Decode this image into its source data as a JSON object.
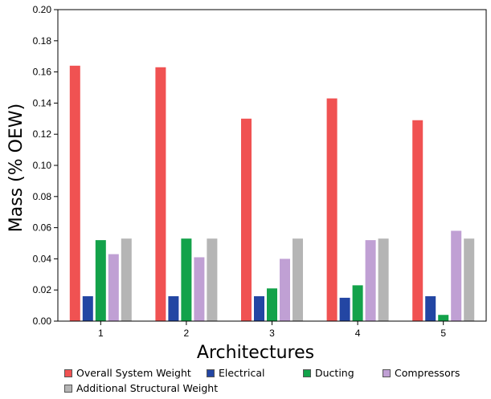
{
  "chart_data": {
    "type": "bar",
    "categories": [
      "1",
      "2",
      "3",
      "4",
      "5"
    ],
    "series": [
      {
        "name": "Overall System Weight",
        "color": "#f05252",
        "values": [
          0.164,
          0.163,
          0.13,
          0.143,
          0.129
        ]
      },
      {
        "name": "Electrical",
        "color": "#2346a3",
        "values": [
          0.016,
          0.016,
          0.016,
          0.015,
          0.016
        ]
      },
      {
        "name": "Ducting",
        "color": "#13a24a",
        "values": [
          0.052,
          0.053,
          0.021,
          0.023,
          0.004
        ]
      },
      {
        "name": "Compressors",
        "color": "#c0a0d4",
        "values": [
          0.043,
          0.041,
          0.04,
          0.052,
          0.058
        ]
      },
      {
        "name": "Additional Structural Weight",
        "color": "#b5b5b5",
        "values": [
          0.053,
          0.053,
          0.053,
          0.053,
          0.053
        ]
      }
    ],
    "xlabel": "Architectures",
    "ylabel": "Mass (% OEW)",
    "ylim": [
      0,
      0.2
    ],
    "yticks": [
      "0.00",
      "0.02",
      "0.04",
      "0.06",
      "0.08",
      "0.10",
      "0.12",
      "0.14",
      "0.16",
      "0.18",
      "0.20"
    ],
    "grid": false,
    "legend_position": "bottom"
  }
}
